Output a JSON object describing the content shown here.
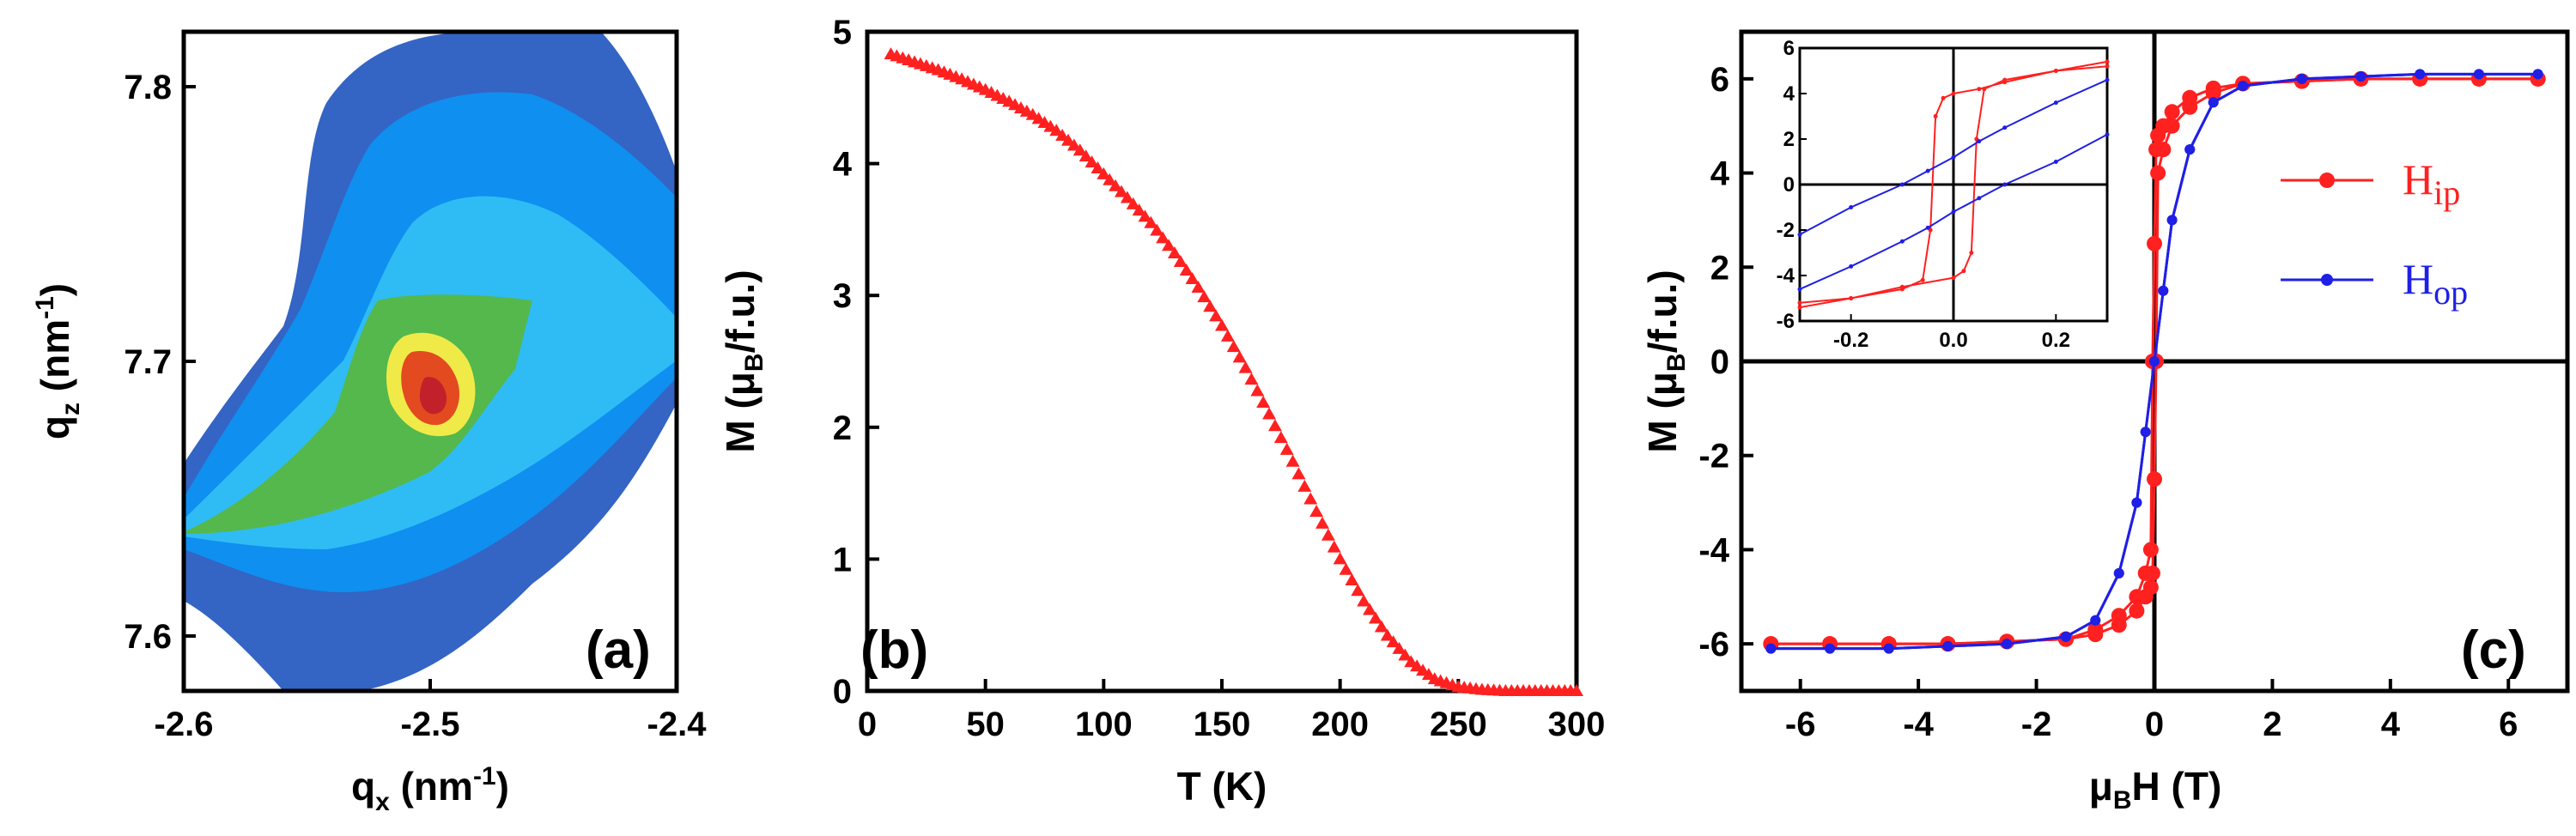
{
  "chart_data": [
    {
      "panel": "(a)",
      "type": "heatmap",
      "description_label": "reciprocal space map contour",
      "xlabel": {
        "main": "q",
        "sub": "x",
        "unit": " (nm",
        "sup": "-1",
        "close": ")"
      },
      "ylabel": {
        "main": "q",
        "sub": "z",
        "unit": " (nm",
        "sup": "-1",
        "close": ")"
      },
      "xlim": [
        -2.6,
        -2.4
      ],
      "ylim": [
        7.58,
        7.82
      ],
      "xticks": [
        "-2.6",
        "-2.5",
        "-2.4"
      ],
      "yticks": [
        "7.6",
        "7.7",
        "7.8"
      ],
      "peak": {
        "qx": -2.505,
        "qz": 7.685
      },
      "contour_levels": [
        "#3464c4",
        "#0f8ff0",
        "#2fbcf5",
        "#54b84c",
        "#f0ea48",
        "#e34a1f"
      ]
    },
    {
      "panel": "(b)",
      "type": "scatter",
      "marker": "triangle",
      "color": "#ff2020",
      "xlabel": "T (K)",
      "ylabel": {
        "main": "M (μ",
        "sub": "B",
        "rest": "/f.u.)"
      },
      "xlim": [
        0,
        300
      ],
      "ylim": [
        0,
        5
      ],
      "xticks": [
        "0",
        "50",
        "100",
        "150",
        "200",
        "250",
        "300"
      ],
      "yticks": [
        "0",
        "1",
        "2",
        "3",
        "4",
        "5"
      ],
      "x": [
        10,
        20,
        30,
        40,
        50,
        60,
        70,
        80,
        90,
        100,
        110,
        120,
        130,
        140,
        150,
        160,
        170,
        180,
        190,
        200,
        210,
        220,
        230,
        240,
        250,
        260,
        270,
        280,
        290,
        300
      ],
      "y": [
        4.83,
        4.77,
        4.71,
        4.64,
        4.56,
        4.47,
        4.37,
        4.25,
        4.1,
        3.92,
        3.74,
        3.55,
        3.32,
        3.06,
        2.77,
        2.45,
        2.1,
        1.74,
        1.36,
        1.0,
        0.68,
        0.42,
        0.22,
        0.09,
        0.03,
        0.01,
        0.0,
        0.0,
        0.0,
        0.0
      ]
    },
    {
      "panel": "(c)",
      "type": "line",
      "xlabel": {
        "main": "μ",
        "sub": "B",
        "rest": "H (T)"
      },
      "ylabel": {
        "main": "M (μ",
        "sub": "B",
        "rest": "/f.u.)"
      },
      "xlim": [
        -7,
        7
      ],
      "ylim": [
        -7,
        7
      ],
      "xticks": [
        "-6",
        "-4",
        "-2",
        "0",
        "2",
        "4",
        "6"
      ],
      "yticks": [
        "-6",
        "-4",
        "-2",
        "0",
        "2",
        "4",
        "6"
      ],
      "series": [
        {
          "name": "H",
          "sub": "ip",
          "color": "#ff2020",
          "x": [
            -6.5,
            -5.5,
            -4.5,
            -3.5,
            -2.5,
            -1.5,
            -1.0,
            -0.6,
            -0.3,
            -0.15,
            -0.06,
            -0.03,
            0.0,
            0.03,
            0.06,
            0.15,
            0.3,
            0.6,
            1.0,
            1.5,
            2.5,
            3.5,
            4.5,
            5.5,
            6.5
          ],
          "y": [
            -6.0,
            -6.0,
            -6.0,
            -6.0,
            -5.95,
            -5.9,
            -5.7,
            -5.4,
            -5.0,
            -4.5,
            -4.0,
            0.0,
            2.5,
            4.5,
            4.8,
            5.0,
            5.3,
            5.6,
            5.8,
            5.9,
            5.95,
            6.0,
            6.0,
            6.0,
            6.0
          ]
        },
        {
          "name": "H",
          "sub": "op",
          "color": "#1f1fe6",
          "x": [
            -6.5,
            -5.5,
            -4.5,
            -3.5,
            -2.5,
            -1.5,
            -1.0,
            -0.6,
            -0.3,
            -0.15,
            0.0,
            0.15,
            0.3,
            0.6,
            1.0,
            1.5,
            2.5,
            3.5,
            4.5,
            5.5,
            6.5
          ],
          "y": [
            -6.1,
            -6.1,
            -6.1,
            -6.05,
            -6.0,
            -5.85,
            -5.5,
            -4.5,
            -3.0,
            -1.5,
            0.0,
            1.5,
            3.0,
            4.5,
            5.5,
            5.85,
            6.0,
            6.05,
            6.1,
            6.1,
            6.1
          ]
        }
      ],
      "inset": {
        "xlim": [
          -0.3,
          0.3
        ],
        "ylim": [
          -6,
          6
        ],
        "xticks": [
          "-0.2",
          "0.0",
          "0.2"
        ],
        "yticks": [
          "-6",
          "-4",
          "-2",
          "0",
          "2",
          "4",
          "6"
        ],
        "ip_upper": {
          "x": [
            -0.3,
            -0.2,
            -0.1,
            -0.06,
            -0.045,
            -0.035,
            -0.02,
            0.0,
            0.05,
            0.1,
            0.2,
            0.3
          ],
          "y": [
            -5.2,
            -5.0,
            -4.6,
            -4.2,
            -2.0,
            3.0,
            3.8,
            4.0,
            4.2,
            4.5,
            5.0,
            5.4
          ]
        },
        "ip_lower": {
          "x": [
            -0.3,
            -0.2,
            -0.1,
            0.0,
            0.02,
            0.035,
            0.045,
            0.06,
            0.1,
            0.2,
            0.3
          ],
          "y": [
            -5.4,
            -5.0,
            -4.5,
            -4.1,
            -3.8,
            -3.0,
            2.0,
            4.2,
            4.6,
            5.0,
            5.2
          ]
        },
        "op_upper": {
          "x": [
            -0.3,
            -0.2,
            -0.1,
            -0.05,
            0.0,
            0.05,
            0.1,
            0.2,
            0.3
          ],
          "y": [
            -2.2,
            -1.0,
            0.0,
            0.6,
            1.2,
            1.9,
            2.5,
            3.6,
            4.6
          ]
        },
        "op_lower": {
          "x": [
            -0.3,
            -0.2,
            -0.1,
            -0.05,
            0.0,
            0.05,
            0.1,
            0.2,
            0.3
          ],
          "y": [
            -4.6,
            -3.6,
            -2.5,
            -1.9,
            -1.2,
            -0.6,
            0.0,
            1.0,
            2.2
          ]
        }
      }
    }
  ]
}
